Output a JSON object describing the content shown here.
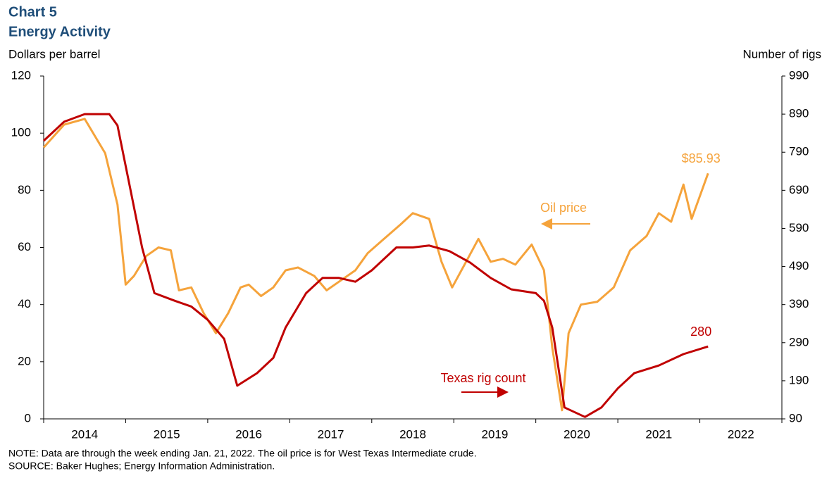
{
  "chart_data": {
    "type": "line",
    "title": "Chart 5",
    "subtitle": "Energy Activity",
    "y_label": "Dollars per barrel",
    "y2_label": "Number  of rigs",
    "note": "NOTE:  Data are through the week ending Jan. 21, 2022. The oil price is for West Texas Intermediate  crude.",
    "source": "SOURCE:  Baker Hughes; Energy Information Administration.",
    "xlim": [
      2014,
      2023
    ],
    "xticks": [
      2014,
      2015,
      2016,
      2017,
      2018,
      2019,
      2020,
      2021,
      2022
    ],
    "ylim": [
      0,
      120
    ],
    "yticks": [
      0,
      20,
      40,
      60,
      80,
      100,
      120
    ],
    "y2lim": [
      90,
      990
    ],
    "y2ticks": [
      90,
      190,
      290,
      390,
      490,
      590,
      690,
      790,
      890,
      990
    ],
    "series": [
      {
        "name": "Oil price",
        "color": "#f5a33b",
        "x": [
          2014.0,
          2014.25,
          2014.5,
          2014.75,
          2014.9,
          2015.0,
          2015.1,
          2015.25,
          2015.4,
          2015.55,
          2015.65,
          2015.8,
          2015.95,
          2016.1,
          2016.25,
          2016.4,
          2016.5,
          2016.65,
          2016.8,
          2016.95,
          2017.1,
          2017.3,
          2017.45,
          2017.6,
          2017.8,
          2017.95,
          2018.15,
          2018.35,
          2018.5,
          2018.7,
          2018.85,
          2018.98,
          2019.15,
          2019.3,
          2019.45,
          2019.6,
          2019.75,
          2019.95,
          2020.1,
          2020.2,
          2020.32,
          2020.4,
          2020.55,
          2020.75,
          2020.95,
          2021.15,
          2021.35,
          2021.5,
          2021.65,
          2021.8,
          2021.9,
          2022.1
        ],
        "values": [
          95,
          103,
          105,
          93,
          75,
          47,
          50,
          57,
          60,
          59,
          45,
          46,
          37,
          30,
          37,
          46,
          47,
          43,
          46,
          52,
          53,
          50,
          45,
          48,
          52,
          58,
          63,
          68,
          72,
          70,
          55,
          46,
          55,
          63,
          55,
          56,
          54,
          61,
          52,
          25,
          3,
          30,
          40,
          41,
          46,
          59,
          64,
          72,
          69,
          82,
          70,
          85.93
        ],
        "value_labels": [
          null,
          null,
          null,
          null,
          null,
          null,
          null,
          null,
          null,
          null,
          null,
          null,
          null,
          null,
          null,
          null,
          null,
          null,
          null,
          null,
          null,
          null,
          null,
          null,
          null,
          null,
          null,
          null,
          null,
          null,
          null,
          null,
          null,
          null,
          null,
          null,
          null,
          null,
          null,
          null,
          null,
          null,
          null,
          null,
          null,
          null,
          null,
          null,
          null,
          null,
          null,
          "$85.93"
        ]
      },
      {
        "name": "Texas rig count",
        "color": "#c00000",
        "axis": "y2",
        "x": [
          2014.0,
          2014.25,
          2014.5,
          2014.8,
          2014.9,
          2015.05,
          2015.2,
          2015.35,
          2015.6,
          2015.8,
          2016.0,
          2016.2,
          2016.36,
          2016.6,
          2016.8,
          2016.95,
          2017.2,
          2017.4,
          2017.6,
          2017.8,
          2018.0,
          2018.3,
          2018.5,
          2018.7,
          2018.95,
          2019.2,
          2019.45,
          2019.7,
          2020.0,
          2020.1,
          2020.2,
          2020.35,
          2020.6,
          2020.8,
          2021.0,
          2021.2,
          2021.5,
          2021.8,
          2022.1
        ],
        "values": [
          820,
          870,
          890,
          890,
          860,
          700,
          540,
          420,
          400,
          385,
          350,
          300,
          177,
          210,
          250,
          330,
          420,
          460,
          460,
          450,
          480,
          540,
          540,
          545,
          530,
          500,
          460,
          430,
          420,
          400,
          330,
          120,
          95,
          120,
          170,
          210,
          230,
          260,
          280
        ]
      }
    ]
  }
}
